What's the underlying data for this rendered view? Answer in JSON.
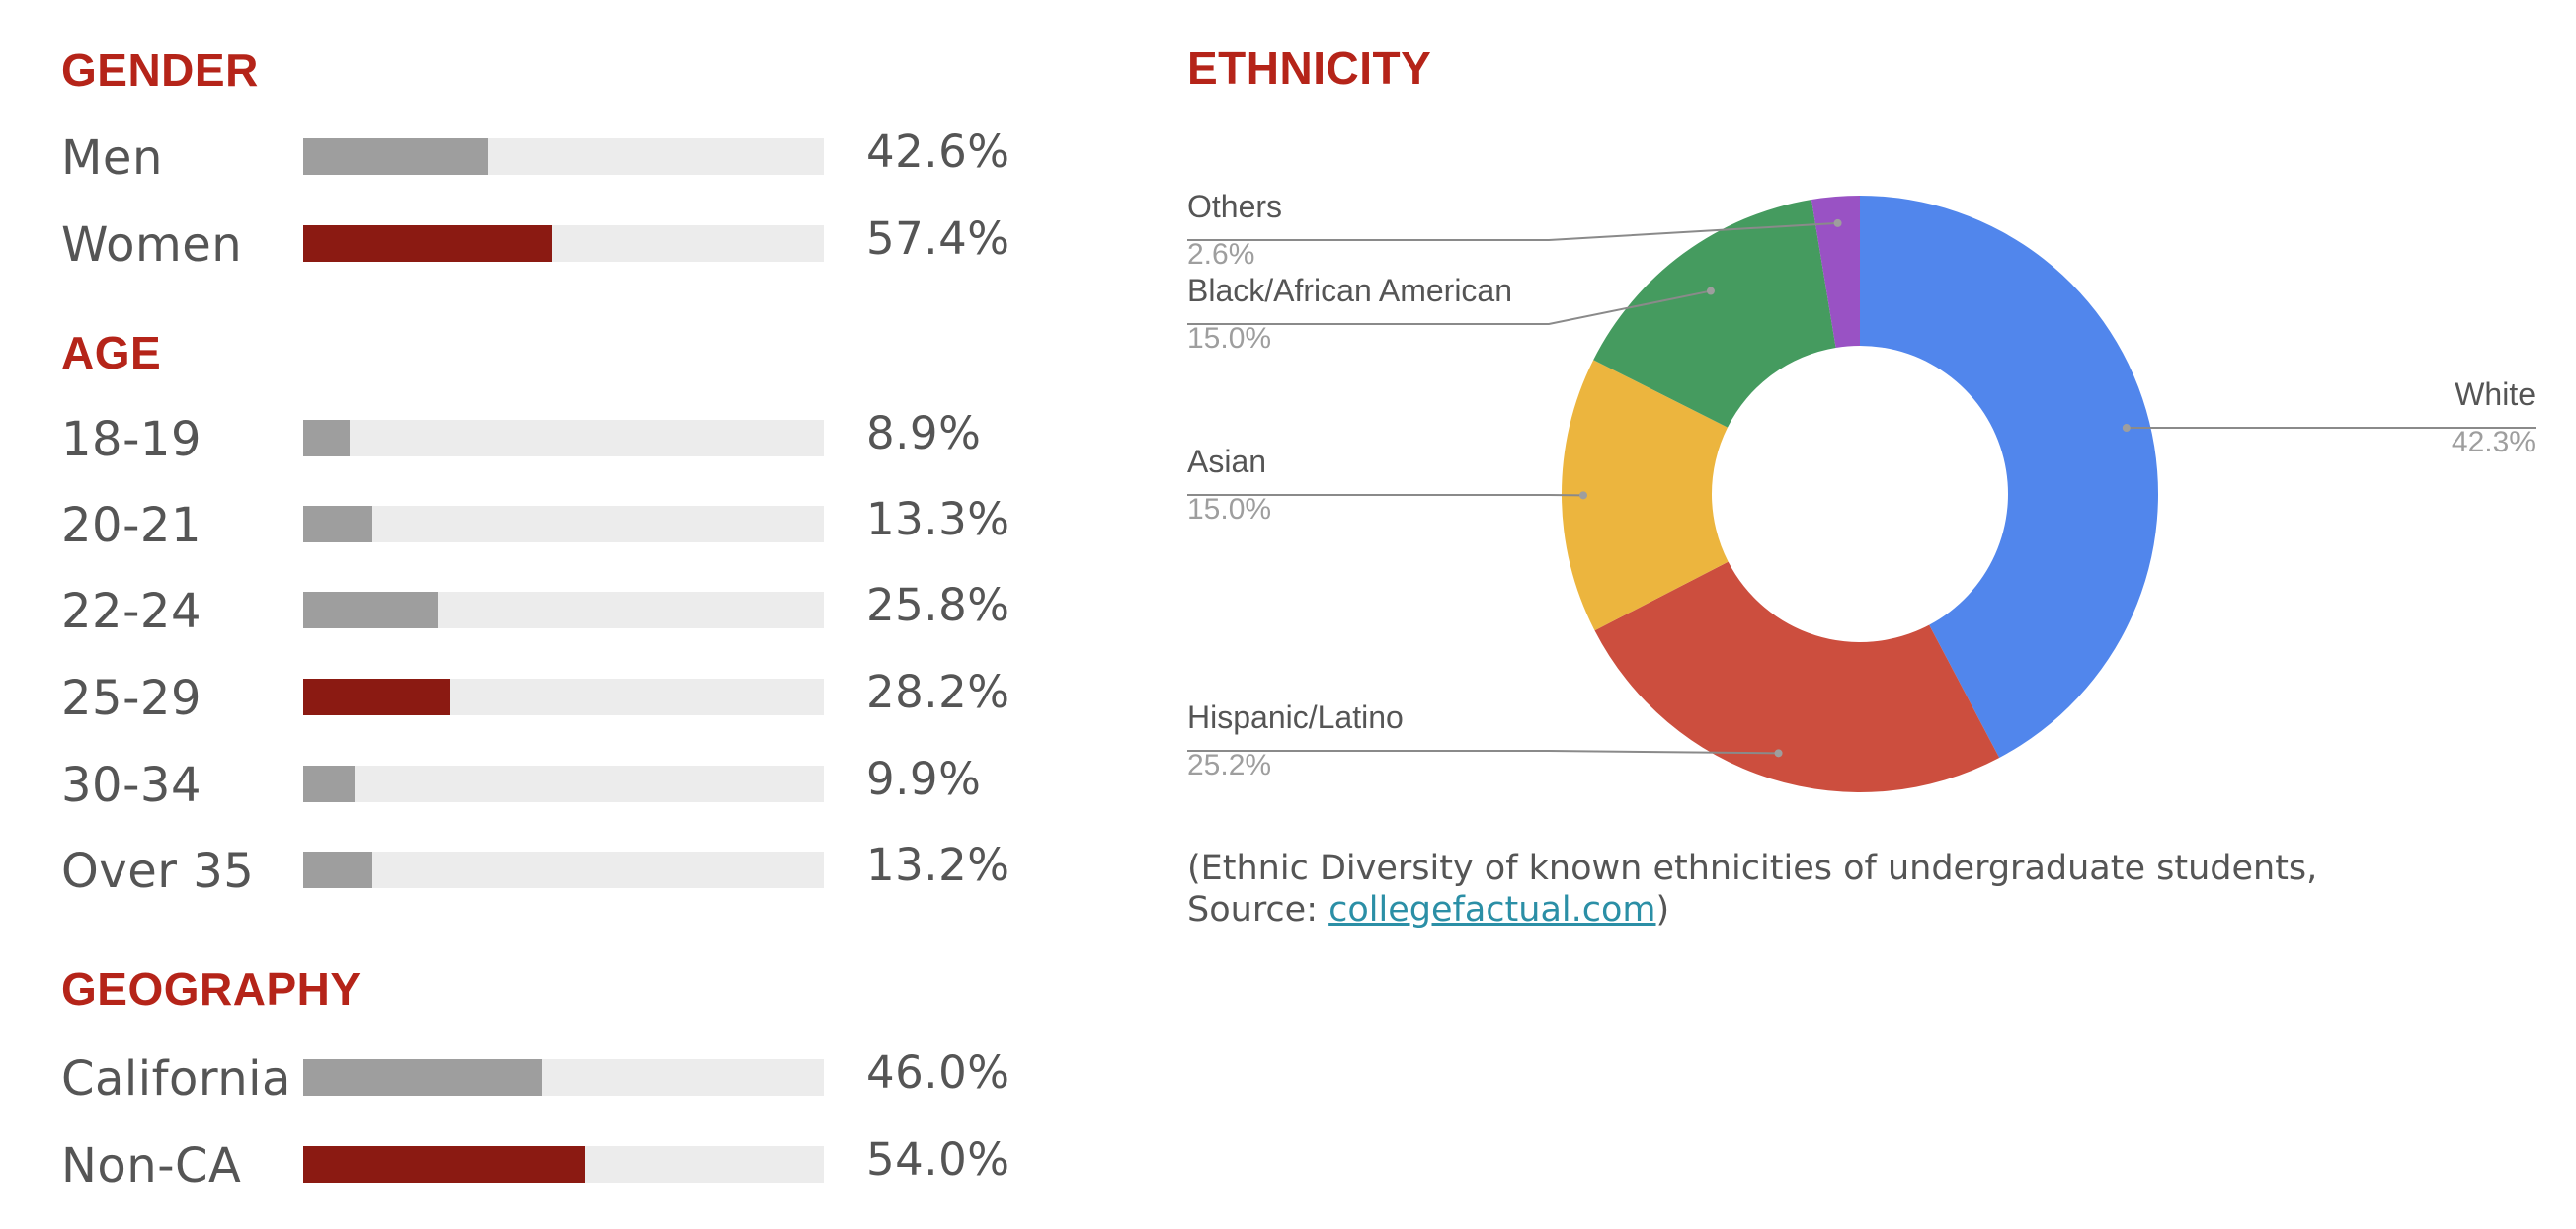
{
  "sections": {
    "gender": {
      "title": "GENDER",
      "rows": [
        {
          "label": "Men",
          "value_text": "42.6%",
          "value": 42.6,
          "highlight": false
        },
        {
          "label": "Women",
          "value_text": "57.4%",
          "value": 57.4,
          "highlight": true
        }
      ]
    },
    "age": {
      "title": "AGE",
      "rows": [
        {
          "label": "18-19",
          "value_text": "8.9%",
          "value": 8.9,
          "highlight": false
        },
        {
          "label": "20-21",
          "value_text": "13.3%",
          "value": 13.3,
          "highlight": false
        },
        {
          "label": "22-24",
          "value_text": "25.8%",
          "value": 25.8,
          "highlight": false
        },
        {
          "label": "25-29",
          "value_text": "28.2%",
          "value": 28.2,
          "highlight": true
        },
        {
          "label": "30-34",
          "value_text": "9.9%",
          "value": 9.9,
          "highlight": false
        },
        {
          "label": "Over 35",
          "value_text": "13.2%",
          "value": 13.2,
          "highlight": false
        }
      ]
    },
    "geography": {
      "title": "GEOGRAPHY",
      "rows": [
        {
          "label": "California",
          "value_text": "46.0%",
          "value": 46.0,
          "highlight": false
        },
        {
          "label": "Non-CA",
          "value_text": "54.0%",
          "value": 54.0,
          "highlight": true
        }
      ]
    }
  },
  "ethnicity": {
    "title": "ETHNICITY",
    "source_prefix": "(Ethnic Diversity of known ethnicities of undergraduate students, Source: ",
    "source_link": "collegefactual.com",
    "source_suffix": ")"
  },
  "colors": {
    "bar_default": "#9e9e9e",
    "bar_highlight": "#8b1a12",
    "track": "#ececec",
    "title": "#b52419"
  },
  "chart_data": [
    {
      "type": "bar",
      "title": "GENDER",
      "orientation": "horizontal",
      "categories": [
        "Men",
        "Women"
      ],
      "values": [
        42.6,
        57.4
      ],
      "xlim": [
        0,
        120
      ]
    },
    {
      "type": "bar",
      "title": "AGE",
      "orientation": "horizontal",
      "categories": [
        "18-19",
        "20-21",
        "22-24",
        "25-29",
        "30-34",
        "Over 35"
      ],
      "values": [
        8.9,
        13.3,
        25.8,
        28.2,
        9.9,
        13.2
      ],
      "xlim": [
        0,
        100
      ]
    },
    {
      "type": "bar",
      "title": "GEOGRAPHY",
      "orientation": "horizontal",
      "categories": [
        "California",
        "Non-CA"
      ],
      "values": [
        46.0,
        54.0
      ],
      "xlim": [
        0,
        100
      ]
    },
    {
      "type": "pie",
      "title": "ETHNICITY",
      "donut": true,
      "slices": [
        {
          "label": "White",
          "value": 42.3,
          "value_text": "42.3%",
          "color": "#5186ec"
        },
        {
          "label": "Hispanic/Latino",
          "value": 25.2,
          "value_text": "25.2%",
          "color": "#cc4e3e"
        },
        {
          "label": "Asian",
          "value": 15.0,
          "value_text": "15.0%",
          "color": "#ecb53e"
        },
        {
          "label": "Black/African American",
          "value": 15.0,
          "value_text": "15.0%",
          "color": "#459b5f"
        },
        {
          "label": "Others",
          "value": 2.6,
          "value_text": "2.6%",
          "color": "#9952c4"
        }
      ]
    }
  ]
}
